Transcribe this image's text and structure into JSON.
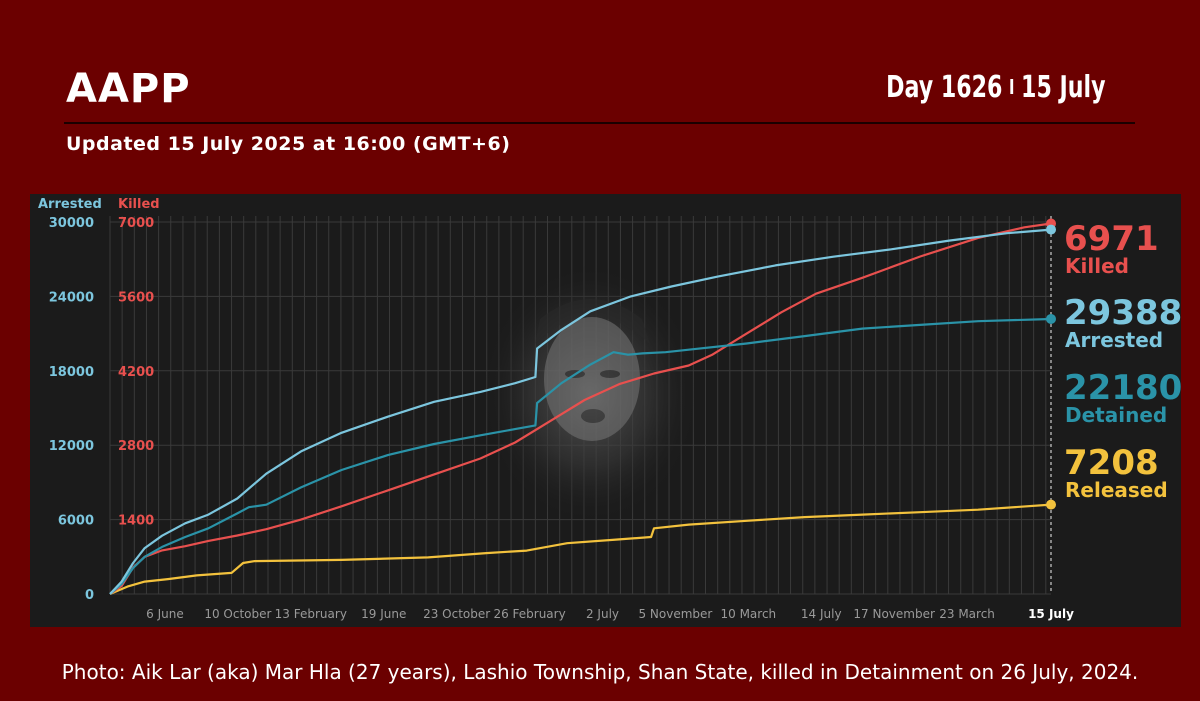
{
  "header": {
    "brand": "AAPP",
    "day_label": "Day 1626",
    "separator": "I",
    "date_label": "15 July",
    "updated": "Updated 15 July 2025 at 16:00 (GMT+6)"
  },
  "caption": "Photo: Aik Lar (aka) Mar Hla (27 years), Lashio Township, Shan State, killed in Detainment on 26 July, 2024.",
  "colors": {
    "background": "#6b0000",
    "panel": "#1b1b1b",
    "arrested": "#7cc6de",
    "killed": "#e8504e",
    "detained": "#2a93a8",
    "released": "#f3c23d"
  },
  "chart_data": {
    "type": "line",
    "left_axis": {
      "title": "Arrested",
      "ticks": [
        "0",
        "6000",
        "12000",
        "18000",
        "24000",
        "30000"
      ],
      "range": [
        0,
        30000
      ]
    },
    "right_axis": {
      "title": "Killed",
      "ticks": [
        "1400",
        "2800",
        "4200",
        "5600",
        "7000"
      ],
      "range": [
        0,
        7000
      ]
    },
    "x_range_days": [
      0,
      1626
    ],
    "x_ticks": [
      {
        "label": "6 June",
        "day": 95
      },
      {
        "label": "10 October",
        "day": 221
      },
      {
        "label": "13 February",
        "day": 347
      },
      {
        "label": "19 June",
        "day": 473
      },
      {
        "label": "23 October",
        "day": 599
      },
      {
        "label": "26 February",
        "day": 725
      },
      {
        "label": "2 July",
        "day": 851
      },
      {
        "label": "5 November",
        "day": 977
      },
      {
        "label": "10 March",
        "day": 1103
      },
      {
        "label": "14 July",
        "day": 1229
      },
      {
        "label": "17 November",
        "day": 1355
      },
      {
        "label": "23 March",
        "day": 1481
      },
      {
        "label": "15 July",
        "day": 1626
      }
    ],
    "grid": true,
    "series": [
      {
        "name": "Arrested",
        "axis": "left",
        "color": "#7cc6de",
        "end_value": "29388",
        "end_label": "Arrested",
        "points": [
          [
            0,
            0
          ],
          [
            20,
            1000
          ],
          [
            40,
            2500
          ],
          [
            60,
            3700
          ],
          [
            90,
            4700
          ],
          [
            130,
            5700
          ],
          [
            170,
            6400
          ],
          [
            220,
            7700
          ],
          [
            270,
            9700
          ],
          [
            330,
            11500
          ],
          [
            400,
            13000
          ],
          [
            480,
            14300
          ],
          [
            560,
            15500
          ],
          [
            640,
            16300
          ],
          [
            700,
            17000
          ],
          [
            735,
            17500
          ],
          [
            738,
            19800
          ],
          [
            780,
            21300
          ],
          [
            830,
            22800
          ],
          [
            900,
            24000
          ],
          [
            970,
            24800
          ],
          [
            1050,
            25600
          ],
          [
            1150,
            26500
          ],
          [
            1250,
            27200
          ],
          [
            1350,
            27800
          ],
          [
            1450,
            28500
          ],
          [
            1550,
            29100
          ],
          [
            1626,
            29388
          ]
        ]
      },
      {
        "name": "Detained",
        "axis": "left",
        "color": "#2a93a8",
        "end_value": "22180",
        "end_label": "Detained",
        "points": [
          [
            0,
            0
          ],
          [
            20,
            800
          ],
          [
            40,
            2100
          ],
          [
            60,
            3000
          ],
          [
            90,
            3800
          ],
          [
            130,
            4600
          ],
          [
            170,
            5300
          ],
          [
            220,
            6500
          ],
          [
            240,
            7000
          ],
          [
            270,
            7200
          ],
          [
            330,
            8600
          ],
          [
            400,
            10000
          ],
          [
            480,
            11200
          ],
          [
            560,
            12100
          ],
          [
            640,
            12800
          ],
          [
            700,
            13300
          ],
          [
            735,
            13600
          ],
          [
            738,
            15400
          ],
          [
            780,
            17000
          ],
          [
            830,
            18500
          ],
          [
            870,
            19500
          ],
          [
            895,
            19300
          ],
          [
            920,
            19400
          ],
          [
            960,
            19500
          ],
          [
            1000,
            19700
          ],
          [
            1100,
            20200
          ],
          [
            1200,
            20800
          ],
          [
            1300,
            21400
          ],
          [
            1400,
            21700
          ],
          [
            1500,
            22000
          ],
          [
            1626,
            22180
          ]
        ]
      },
      {
        "name": "Killed",
        "axis": "right",
        "color": "#e8504e",
        "end_value": "6971",
        "end_label": "Killed",
        "points": [
          [
            0,
            0
          ],
          [
            20,
            150
          ],
          [
            40,
            500
          ],
          [
            60,
            700
          ],
          [
            90,
            820
          ],
          [
            130,
            900
          ],
          [
            170,
            1000
          ],
          [
            220,
            1100
          ],
          [
            270,
            1220
          ],
          [
            330,
            1400
          ],
          [
            400,
            1650
          ],
          [
            480,
            1950
          ],
          [
            560,
            2250
          ],
          [
            640,
            2550
          ],
          [
            700,
            2850
          ],
          [
            760,
            3250
          ],
          [
            820,
            3650
          ],
          [
            880,
            3950
          ],
          [
            940,
            4150
          ],
          [
            1000,
            4300
          ],
          [
            1040,
            4500
          ],
          [
            1100,
            4900
          ],
          [
            1160,
            5300
          ],
          [
            1220,
            5650
          ],
          [
            1300,
            5950
          ],
          [
            1400,
            6350
          ],
          [
            1500,
            6700
          ],
          [
            1580,
            6900
          ],
          [
            1626,
            6971
          ]
        ]
      },
      {
        "name": "Released",
        "axis": "left",
        "color": "#f3c23d",
        "end_value": "7208",
        "end_label": "Released",
        "points": [
          [
            0,
            0
          ],
          [
            30,
            600
          ],
          [
            60,
            1000
          ],
          [
            100,
            1200
          ],
          [
            150,
            1500
          ],
          [
            210,
            1700
          ],
          [
            230,
            2500
          ],
          [
            250,
            2650
          ],
          [
            400,
            2750
          ],
          [
            550,
            2950
          ],
          [
            650,
            3300
          ],
          [
            720,
            3500
          ],
          [
            790,
            4100
          ],
          [
            880,
            4400
          ],
          [
            935,
            4600
          ],
          [
            940,
            5300
          ],
          [
            1000,
            5600
          ],
          [
            1100,
            5900
          ],
          [
            1200,
            6200
          ],
          [
            1300,
            6400
          ],
          [
            1400,
            6600
          ],
          [
            1500,
            6800
          ],
          [
            1626,
            7208
          ]
        ]
      }
    ]
  }
}
